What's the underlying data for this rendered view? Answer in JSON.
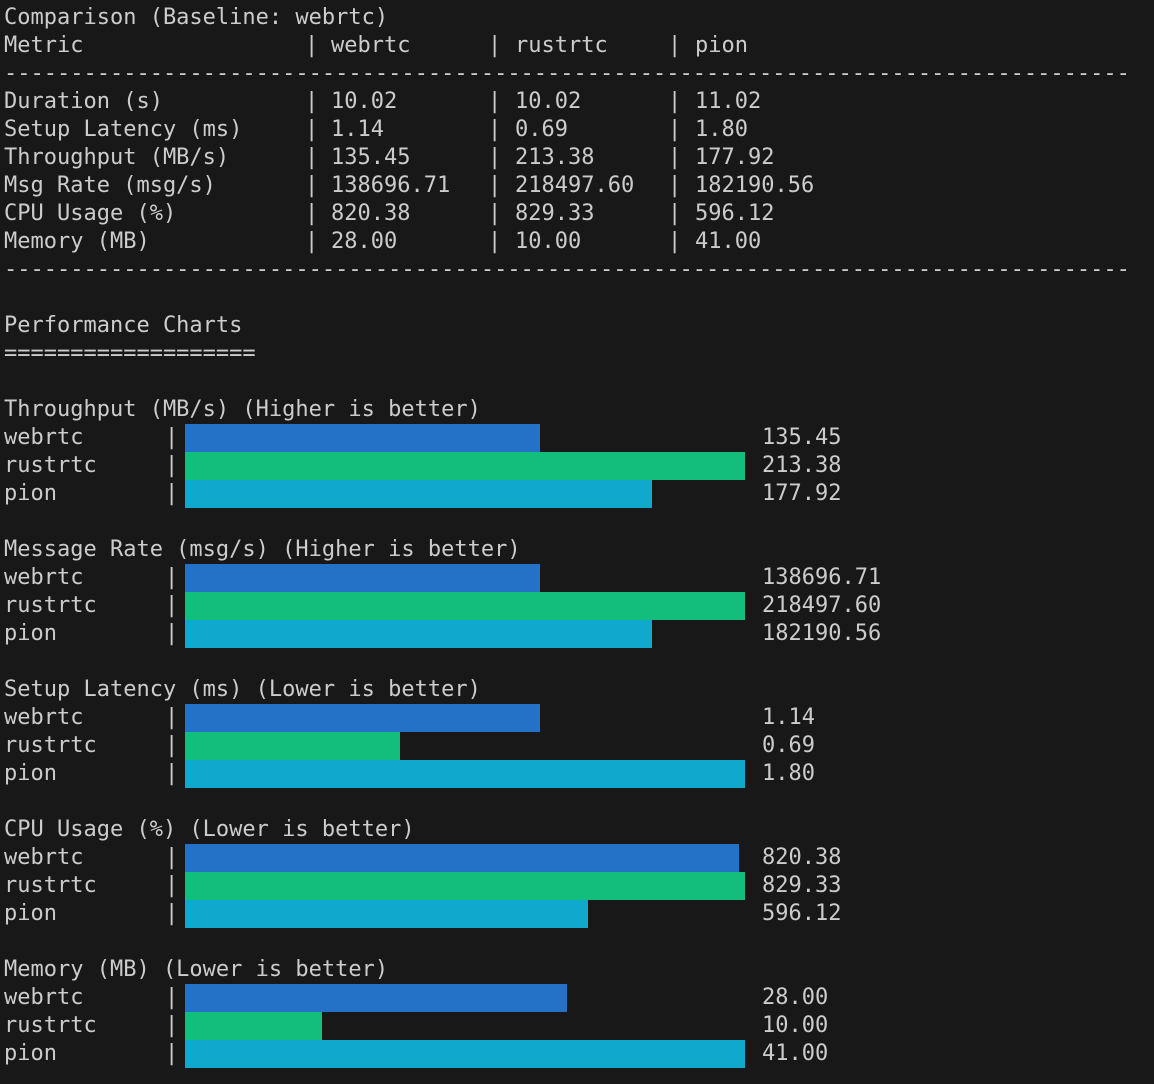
{
  "colors": {
    "background": "#181818",
    "text": "#cccccc",
    "webrtc": "#2472c8",
    "rustrtc": "#13bd7b",
    "pion": "#11a8cd"
  },
  "comparison": {
    "title": "Comparison (Baseline: webrtc)",
    "pipe": "|",
    "header": {
      "metric": "Metric",
      "columns": [
        "webrtc",
        "rustrtc",
        "pion"
      ]
    },
    "separator": "-------------------------------------------------------------------------------------",
    "rows": [
      {
        "metric": "Duration (s)",
        "values": [
          "10.02",
          "10.02",
          "11.02"
        ]
      },
      {
        "metric": "Setup Latency (ms)",
        "values": [
          "1.14",
          "0.69",
          "1.80"
        ]
      },
      {
        "metric": "Throughput (MB/s)",
        "values": [
          "135.45",
          "213.38",
          "177.92"
        ]
      },
      {
        "metric": "Msg Rate (msg/s)",
        "values": [
          "138696.71",
          "218497.60",
          "182190.56"
        ]
      },
      {
        "metric": "CPU Usage (%)",
        "values": [
          "820.38",
          "829.33",
          "596.12"
        ]
      },
      {
        "metric": "Memory (MB)",
        "values": [
          "28.00",
          "10.00",
          "41.00"
        ]
      }
    ]
  },
  "charts_section": {
    "heading": "Performance Charts",
    "underline": "==================="
  },
  "charts": [
    {
      "title": "Throughput (MB/s) (Higher is better)",
      "bars": [
        {
          "label": "webrtc",
          "value": 135.45,
          "display": "135.45"
        },
        {
          "label": "rustrtc",
          "value": 213.38,
          "display": "213.38"
        },
        {
          "label": "pion",
          "value": 177.92,
          "display": "177.92"
        }
      ]
    },
    {
      "title": "Message Rate (msg/s) (Higher is better)",
      "bars": [
        {
          "label": "webrtc",
          "value": 138696.71,
          "display": "138696.71"
        },
        {
          "label": "rustrtc",
          "value": 218497.6,
          "display": "218497.60"
        },
        {
          "label": "pion",
          "value": 182190.56,
          "display": "182190.56"
        }
      ]
    },
    {
      "title": "Setup Latency (ms) (Lower is better)",
      "bars": [
        {
          "label": "webrtc",
          "value": 1.14,
          "display": "1.14"
        },
        {
          "label": "rustrtc",
          "value": 0.69,
          "display": "0.69"
        },
        {
          "label": "pion",
          "value": 1.8,
          "display": "1.80"
        }
      ]
    },
    {
      "title": "CPU Usage (%) (Lower is better)",
      "bars": [
        {
          "label": "webrtc",
          "value": 820.38,
          "display": "820.38"
        },
        {
          "label": "rustrtc",
          "value": 829.33,
          "display": "829.33"
        },
        {
          "label": "pion",
          "value": 596.12,
          "display": "596.12"
        }
      ]
    },
    {
      "title": "Memory (MB) (Lower is better)",
      "bars": [
        {
          "label": "webrtc",
          "value": 28.0,
          "display": "28.00"
        },
        {
          "label": "rustrtc",
          "value": 10.0,
          "display": "10.00"
        },
        {
          "label": "pion",
          "value": 41.0,
          "display": "41.00"
        }
      ]
    }
  ],
  "chart_data": [
    {
      "type": "table",
      "title": "Comparison (Baseline: webrtc)",
      "columns": [
        "Metric",
        "webrtc",
        "rustrtc",
        "pion"
      ],
      "rows": [
        [
          "Duration (s)",
          10.02,
          10.02,
          11.02
        ],
        [
          "Setup Latency (ms)",
          1.14,
          0.69,
          1.8
        ],
        [
          "Throughput (MB/s)",
          135.45,
          213.38,
          177.92
        ],
        [
          "Msg Rate (msg/s)",
          138696.71,
          218497.6,
          182190.56
        ],
        [
          "CPU Usage (%)",
          820.38,
          829.33,
          596.12
        ],
        [
          "Memory (MB)",
          28.0,
          10.0,
          41.0
        ]
      ]
    },
    {
      "type": "bar",
      "title": "Throughput (MB/s) (Higher is better)",
      "categories": [
        "webrtc",
        "rustrtc",
        "pion"
      ],
      "values": [
        135.45,
        213.38,
        177.92
      ],
      "orientation": "horizontal"
    },
    {
      "type": "bar",
      "title": "Message Rate (msg/s) (Higher is better)",
      "categories": [
        "webrtc",
        "rustrtc",
        "pion"
      ],
      "values": [
        138696.71,
        218497.6,
        182190.56
      ],
      "orientation": "horizontal"
    },
    {
      "type": "bar",
      "title": "Setup Latency (ms) (Lower is better)",
      "categories": [
        "webrtc",
        "rustrtc",
        "pion"
      ],
      "values": [
        1.14,
        0.69,
        1.8
      ],
      "orientation": "horizontal"
    },
    {
      "type": "bar",
      "title": "CPU Usage (%) (Lower is better)",
      "categories": [
        "webrtc",
        "rustrtc",
        "pion"
      ],
      "values": [
        820.38,
        829.33,
        596.12
      ],
      "orientation": "horizontal"
    },
    {
      "type": "bar",
      "title": "Memory (MB) (Lower is better)",
      "categories": [
        "webrtc",
        "rustrtc",
        "pion"
      ],
      "values": [
        28.0,
        10.0,
        41.0
      ],
      "orientation": "horizontal"
    }
  ]
}
